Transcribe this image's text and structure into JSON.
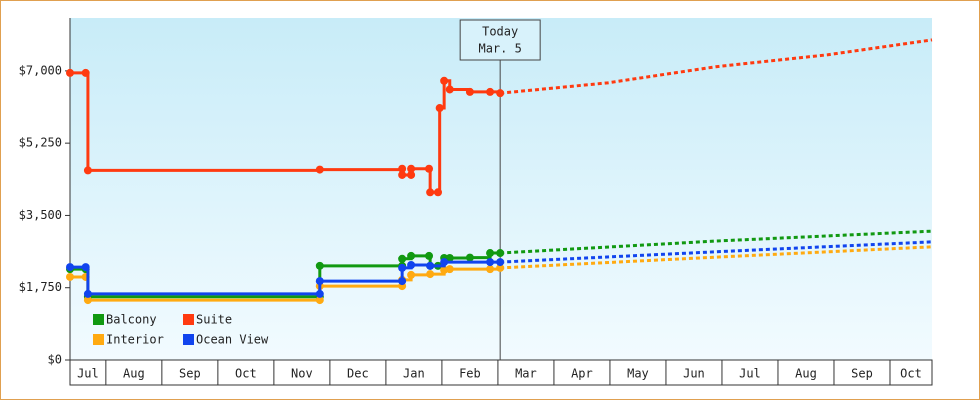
{
  "chart_data": {
    "type": "step-line",
    "xlim": [
      0.36,
      15.75
    ],
    "xticks": [
      1,
      2,
      3,
      4,
      5,
      6,
      7,
      8,
      9,
      10,
      11,
      12,
      13,
      14,
      15
    ],
    "months": [
      "Jul",
      "Aug",
      "Sep",
      "Oct",
      "Nov",
      "Dec",
      "Jan",
      "Feb",
      "Mar",
      "Apr",
      "May",
      "Jun",
      "Jul",
      "Aug",
      "Sep",
      "Oct"
    ],
    "ylim": [
      0,
      8280
    ],
    "yticks": [
      {
        "value": 0,
        "label": "$0"
      },
      {
        "value": 1750,
        "label": "$1,750"
      },
      {
        "value": 3500,
        "label": "$3,500"
      },
      {
        "value": 5250,
        "label": "$5,250"
      },
      {
        "value": 7000,
        "label": "$7,000"
      }
    ],
    "annotation": {
      "x": 8.04,
      "lines": [
        "Today",
        "Mar. 5"
      ]
    },
    "series": [
      {
        "name": "Balcony",
        "color": "#119911",
        "x": [
          0.36,
          0.64,
          0.68,
          4.82,
          4.82,
          6.29,
          6.29,
          6.45,
          6.77,
          6.79,
          6.93,
          7.04,
          7.14,
          7.5,
          7.86,
          8.04
        ],
        "values": [
          2200,
          2200,
          1530,
          1530,
          2280,
          2280,
          2450,
          2520,
          2520,
          2280,
          2280,
          2470,
          2470,
          2480,
          2590,
          2590
        ],
        "forecast_x": [
          8.04,
          11.89,
          15.75
        ],
        "forecast_values": [
          2590,
          2880,
          3120
        ]
      },
      {
        "name": "Suite",
        "color": "#ff3a10",
        "x": [
          0.36,
          0.64,
          0.68,
          4.82,
          6.29,
          6.29,
          6.45,
          6.45,
          6.77,
          6.79,
          6.93,
          6.96,
          7.04,
          7.14,
          7.5,
          7.86,
          8.04
        ],
        "values": [
          6950,
          6950,
          4590,
          4610,
          4630,
          4480,
          4480,
          4630,
          4630,
          4060,
          4060,
          6100,
          6760,
          6550,
          6490,
          6490,
          6460
        ],
        "forecast_x": [
          8.04,
          9.96,
          11.89,
          13.89,
          15.75
        ],
        "forecast_values": [
          6460,
          6710,
          7100,
          7390,
          7750
        ]
      },
      {
        "name": "Interior",
        "color": "#ffaa11",
        "x": [
          0.36,
          0.64,
          0.68,
          4.82,
          4.82,
          6.29,
          6.29,
          6.45,
          6.79,
          7.04,
          7.14,
          7.86,
          8.04
        ],
        "values": [
          2010,
          2010,
          1450,
          1450,
          1790,
          1790,
          1940,
          2060,
          2080,
          2180,
          2200,
          2200,
          2230
        ],
        "forecast_x": [
          8.04,
          11.89,
          15.75
        ],
        "forecast_values": [
          2230,
          2490,
          2740
        ]
      },
      {
        "name": "Ocean View",
        "color": "#1144ee",
        "x": [
          0.36,
          0.64,
          0.68,
          4.82,
          4.82,
          6.29,
          6.29,
          6.45,
          6.79,
          7.04,
          7.86,
          8.04
        ],
        "values": [
          2250,
          2250,
          1600,
          1600,
          1910,
          1910,
          2230,
          2300,
          2280,
          2370,
          2370,
          2370
        ],
        "forecast_x": [
          8.04,
          11.89,
          15.75
        ],
        "forecast_values": [
          2370,
          2620,
          2860
        ]
      }
    ]
  }
}
